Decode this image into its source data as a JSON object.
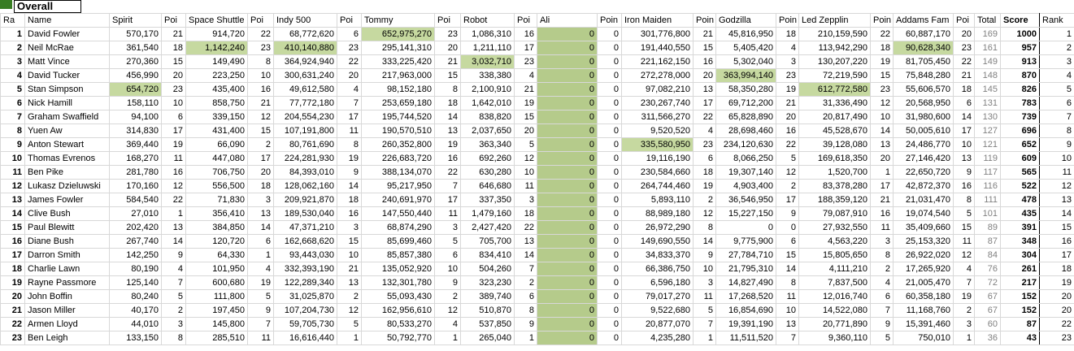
{
  "title": "Overall",
  "colors": {
    "highlight": "#c6d9a0",
    "ali_column": "#b5cb8b",
    "gridline": "#d8d8d8",
    "total_text": "#808080",
    "corner_square": "#377d22"
  },
  "header": {
    "rank_short": "Ra",
    "name": "Name",
    "total": "Total",
    "score": "Score",
    "rank": "Rank",
    "machines": [
      {
        "name": "Spirit",
        "pts": "Poi"
      },
      {
        "name": "Space Shuttle",
        "pts": "Poi"
      },
      {
        "name": "Indy 500",
        "pts": "Poi"
      },
      {
        "name": "Tommy",
        "pts": "Poi"
      },
      {
        "name": "Robot",
        "pts": "Poi"
      },
      {
        "name": "Ali",
        "pts": "Poin"
      },
      {
        "name": "Iron Maiden",
        "pts": "Poin"
      },
      {
        "name": "Godzilla",
        "pts": "Poin"
      },
      {
        "name": "Led Zepplin",
        "pts": "Poin"
      },
      {
        "name": "Addams Fam",
        "pts": "Poi"
      }
    ]
  },
  "rows": [
    {
      "n": "1",
      "name": "David Fowler",
      "c": [
        "570,170",
        "21",
        "914,720",
        "22",
        "68,772,620",
        "6",
        "652,975,270",
        "23",
        "1,086,310",
        "16",
        "0",
        "0",
        "301,776,800",
        "21",
        "45,816,950",
        "18",
        "210,159,590",
        "22",
        "60,887,170",
        "20"
      ],
      "t": "169",
      "s": "1000",
      "r": "1",
      "hl": [
        3
      ]
    },
    {
      "n": "2",
      "name": "Neil McRae",
      "c": [
        "361,540",
        "18",
        "1,142,240",
        "23",
        "410,140,880",
        "23",
        "295,141,310",
        "20",
        "1,211,110",
        "17",
        "0",
        "0",
        "191,440,550",
        "15",
        "5,405,420",
        "4",
        "113,942,290",
        "18",
        "90,628,340",
        "23"
      ],
      "t": "161",
      "s": "957",
      "r": "2",
      "hl": [
        1,
        2,
        9
      ]
    },
    {
      "n": "3",
      "name": "Matt Vince",
      "c": [
        "270,360",
        "15",
        "149,490",
        "8",
        "364,924,940",
        "22",
        "333,225,420",
        "21",
        "3,032,710",
        "23",
        "0",
        "0",
        "221,162,150",
        "16",
        "5,302,040",
        "3",
        "130,207,220",
        "19",
        "81,705,450",
        "22"
      ],
      "t": "149",
      "s": "913",
      "r": "3",
      "hl": [
        4
      ]
    },
    {
      "n": "4",
      "name": "David Tucker",
      "c": [
        "456,990",
        "20",
        "223,250",
        "10",
        "300,631,240",
        "20",
        "217,963,000",
        "15",
        "338,380",
        "4",
        "0",
        "0",
        "272,278,000",
        "20",
        "363,994,140",
        "23",
        "72,219,590",
        "15",
        "75,848,280",
        "21"
      ],
      "t": "148",
      "s": "870",
      "r": "4",
      "hl": [
        7
      ]
    },
    {
      "n": "5",
      "name": "Stan Simpson",
      "c": [
        "654,720",
        "23",
        "435,400",
        "16",
        "49,612,580",
        "4",
        "98,152,180",
        "8",
        "2,100,910",
        "21",
        "0",
        "0",
        "97,082,210",
        "13",
        "58,350,280",
        "19",
        "612,772,580",
        "23",
        "55,606,570",
        "18"
      ],
      "t": "145",
      "s": "826",
      "r": "5",
      "hl": [
        0,
        8
      ]
    },
    {
      "n": "6",
      "name": "Nick Hamill",
      "c": [
        "158,110",
        "10",
        "858,750",
        "21",
        "77,772,180",
        "7",
        "253,659,180",
        "18",
        "1,642,010",
        "19",
        "0",
        "0",
        "230,267,740",
        "17",
        "69,712,200",
        "21",
        "31,336,490",
        "12",
        "20,568,950",
        "6"
      ],
      "t": "131",
      "s": "783",
      "r": "6",
      "hl": []
    },
    {
      "n": "7",
      "name": "Graham Swaffield",
      "c": [
        "94,100",
        "6",
        "339,150",
        "12",
        "204,554,230",
        "17",
        "195,744,520",
        "14",
        "838,820",
        "15",
        "0",
        "0",
        "311,566,270",
        "22",
        "65,828,890",
        "20",
        "20,817,490",
        "10",
        "31,980,600",
        "14"
      ],
      "t": "130",
      "s": "739",
      "r": "7",
      "hl": []
    },
    {
      "n": "8",
      "name": "Yuen Aw",
      "c": [
        "314,830",
        "17",
        "431,400",
        "15",
        "107,191,800",
        "11",
        "190,570,510",
        "13",
        "2,037,650",
        "20",
        "0",
        "0",
        "9,520,520",
        "4",
        "28,698,460",
        "16",
        "45,528,670",
        "14",
        "50,005,610",
        "17"
      ],
      "t": "127",
      "s": "696",
      "r": "8",
      "hl": []
    },
    {
      "n": "9",
      "name": "Anton Stewart",
      "c": [
        "369,440",
        "19",
        "66,090",
        "2",
        "80,761,690",
        "8",
        "260,352,800",
        "19",
        "363,340",
        "5",
        "0",
        "0",
        "335,580,950",
        "23",
        "234,120,630",
        "22",
        "39,128,080",
        "13",
        "24,486,770",
        "10"
      ],
      "t": "121",
      "s": "652",
      "r": "9",
      "hl": [
        6
      ]
    },
    {
      "n": "10",
      "name": "Thomas Evrenos",
      "c": [
        "168,270",
        "11",
        "447,080",
        "17",
        "224,281,930",
        "19",
        "226,683,720",
        "16",
        "692,260",
        "12",
        "0",
        "0",
        "19,116,190",
        "6",
        "8,066,250",
        "5",
        "169,618,350",
        "20",
        "27,146,420",
        "13"
      ],
      "t": "119",
      "s": "609",
      "r": "10",
      "hl": []
    },
    {
      "n": "11",
      "name": "Ben Pike",
      "c": [
        "281,780",
        "16",
        "706,750",
        "20",
        "84,393,010",
        "9",
        "388,134,070",
        "22",
        "630,280",
        "10",
        "0",
        "0",
        "230,584,660",
        "18",
        "19,307,140",
        "12",
        "1,520,700",
        "1",
        "22,650,720",
        "9"
      ],
      "t": "117",
      "s": "565",
      "r": "11",
      "hl": []
    },
    {
      "n": "12",
      "name": "Lukasz Dzieluwski",
      "c": [
        "170,160",
        "12",
        "556,500",
        "18",
        "128,062,160",
        "14",
        "95,217,950",
        "7",
        "646,680",
        "11",
        "0",
        "0",
        "264,744,460",
        "19",
        "4,903,400",
        "2",
        "83,378,280",
        "17",
        "42,872,370",
        "16"
      ],
      "t": "116",
      "s": "522",
      "r": "12",
      "hl": []
    },
    {
      "n": "13",
      "name": "James Fowler",
      "c": [
        "584,540",
        "22",
        "71,830",
        "3",
        "209,921,870",
        "18",
        "240,691,970",
        "17",
        "337,350",
        "3",
        "0",
        "0",
        "5,893,110",
        "2",
        "36,546,950",
        "17",
        "188,359,120",
        "21",
        "21,031,470",
        "8"
      ],
      "t": "111",
      "s": "478",
      "r": "13",
      "hl": []
    },
    {
      "n": "14",
      "name": "Clive Bush",
      "c": [
        "27,010",
        "1",
        "356,410",
        "13",
        "189,530,040",
        "16",
        "147,550,440",
        "11",
        "1,479,160",
        "18",
        "0",
        "0",
        "88,989,180",
        "12",
        "15,227,150",
        "9",
        "79,087,910",
        "16",
        "19,074,540",
        "5"
      ],
      "t": "101",
      "s": "435",
      "r": "14",
      "hl": []
    },
    {
      "n": "15",
      "name": "Paul Blewitt",
      "c": [
        "202,420",
        "13",
        "384,850",
        "14",
        "47,371,210",
        "3",
        "68,874,290",
        "3",
        "2,427,420",
        "22",
        "0",
        "0",
        "26,972,290",
        "8",
        "0",
        "0",
        "27,932,550",
        "11",
        "35,409,660",
        "15"
      ],
      "t": "89",
      "s": "391",
      "r": "15",
      "hl": []
    },
    {
      "n": "16",
      "name": "Diane Bush",
      "c": [
        "267,740",
        "14",
        "120,720",
        "6",
        "162,668,620",
        "15",
        "85,699,460",
        "5",
        "705,700",
        "13",
        "0",
        "0",
        "149,690,550",
        "14",
        "9,775,900",
        "6",
        "4,563,220",
        "3",
        "25,153,320",
        "11"
      ],
      "t": "87",
      "s": "348",
      "r": "16",
      "hl": []
    },
    {
      "n": "17",
      "name": "Darron Smith",
      "c": [
        "142,250",
        "9",
        "64,330",
        "1",
        "93,443,030",
        "10",
        "85,857,380",
        "6",
        "834,410",
        "14",
        "0",
        "0",
        "34,833,370",
        "9",
        "27,784,710",
        "15",
        "15,805,650",
        "8",
        "26,922,020",
        "12"
      ],
      "t": "84",
      "s": "304",
      "r": "17",
      "hl": []
    },
    {
      "n": "18",
      "name": "Charlie Lawn",
      "c": [
        "80,190",
        "4",
        "101,950",
        "4",
        "332,393,190",
        "21",
        "135,052,920",
        "10",
        "504,260",
        "7",
        "0",
        "0",
        "66,386,750",
        "10",
        "21,795,310",
        "14",
        "4,111,210",
        "2",
        "17,265,920",
        "4"
      ],
      "t": "76",
      "s": "261",
      "r": "18",
      "hl": []
    },
    {
      "n": "19",
      "name": "Rayne Passmore",
      "c": [
        "125,140",
        "7",
        "600,680",
        "19",
        "122,289,340",
        "13",
        "132,301,780",
        "9",
        "323,230",
        "2",
        "0",
        "0",
        "6,596,180",
        "3",
        "14,827,490",
        "8",
        "7,837,500",
        "4",
        "21,005,470",
        "7"
      ],
      "t": "72",
      "s": "217",
      "r": "19",
      "hl": []
    },
    {
      "n": "20",
      "name": "John Boffin",
      "c": [
        "80,240",
        "5",
        "111,800",
        "5",
        "31,025,870",
        "2",
        "55,093,430",
        "2",
        "389,740",
        "6",
        "0",
        "0",
        "79,017,270",
        "11",
        "17,268,520",
        "11",
        "12,016,740",
        "6",
        "60,358,180",
        "19"
      ],
      "t": "67",
      "s": "152",
      "r": "20",
      "hl": []
    },
    {
      "n": "21",
      "name": "Jason Miller",
      "c": [
        "40,170",
        "2",
        "197,450",
        "9",
        "107,204,730",
        "12",
        "162,956,610",
        "12",
        "510,870",
        "8",
        "0",
        "0",
        "9,522,680",
        "5",
        "16,854,690",
        "10",
        "14,522,080",
        "7",
        "11,168,760",
        "2"
      ],
      "t": "67",
      "s": "152",
      "r": "20",
      "hl": []
    },
    {
      "n": "22",
      "name": "Armen Lloyd",
      "c": [
        "44,010",
        "3",
        "145,800",
        "7",
        "59,705,730",
        "5",
        "80,533,270",
        "4",
        "537,850",
        "9",
        "0",
        "0",
        "20,877,070",
        "7",
        "19,391,190",
        "13",
        "20,771,890",
        "9",
        "15,391,460",
        "3"
      ],
      "t": "60",
      "s": "87",
      "r": "22",
      "hl": []
    },
    {
      "n": "23",
      "name": "Ben Leigh",
      "c": [
        "133,150",
        "8",
        "285,510",
        "11",
        "16,616,440",
        "1",
        "50,792,770",
        "1",
        "265,040",
        "1",
        "0",
        "0",
        "4,235,280",
        "1",
        "11,511,520",
        "7",
        "9,360,110",
        "5",
        "750,010",
        "1"
      ],
      "t": "36",
      "s": "43",
      "r": "23",
      "hl": []
    }
  ]
}
